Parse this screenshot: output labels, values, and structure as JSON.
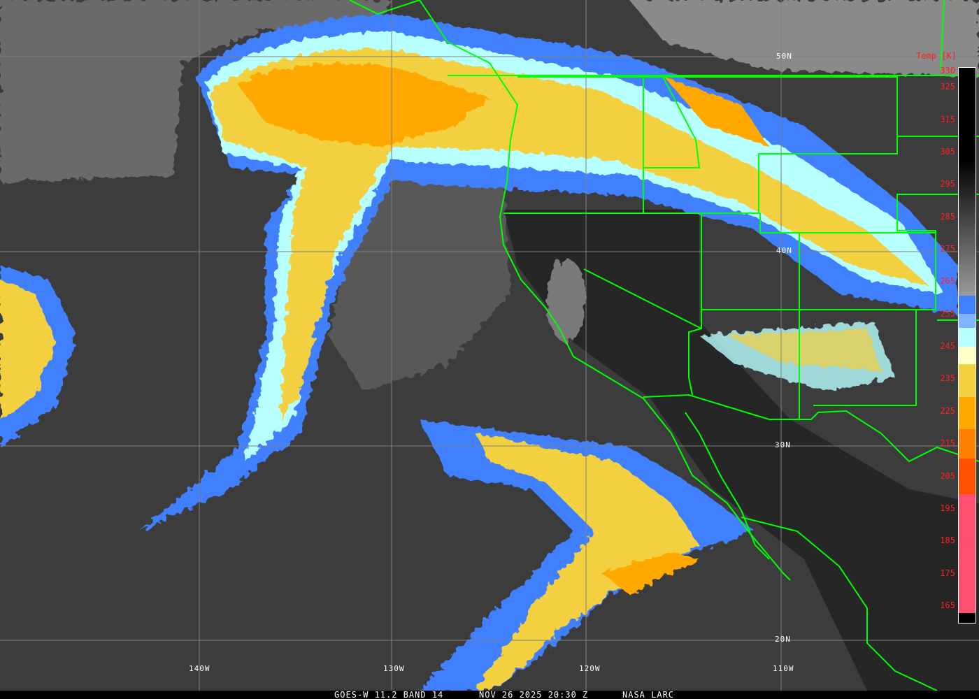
{
  "caption": {
    "satellite": "GOES-W 11.2 BAND 14",
    "datetime": "NOV 26 2025 20:30 Z",
    "credit": "NASA LARC"
  },
  "grid": {
    "latitudes": [
      "50N",
      "40N",
      "30N",
      "20N"
    ],
    "longitudes": [
      "140W",
      "130W",
      "120W",
      "110W"
    ]
  },
  "colorbar": {
    "title": "Temp [K]",
    "ticks": [
      "330",
      "325",
      "315",
      "305",
      "295",
      "285",
      "275",
      "265",
      "255",
      "245",
      "235",
      "225",
      "215",
      "205",
      "195",
      "185",
      "175",
      "165"
    ],
    "colors": {
      "warm_top": "#000000",
      "warm_bottom": "#9a9a9a",
      "blue": "#4080ff",
      "light_blue": "#80b4ff",
      "cyan": "#b8ffff",
      "cream": "#ffffc8",
      "yellow": "#f2d040",
      "orange": "#ffa800",
      "dark_orange": "#ff8000",
      "red_orange": "#ff5000",
      "pink": "#ff5070"
    }
  },
  "colors": {
    "borders": "#00ff00",
    "grid": "#808080",
    "label": "#ff2020"
  }
}
